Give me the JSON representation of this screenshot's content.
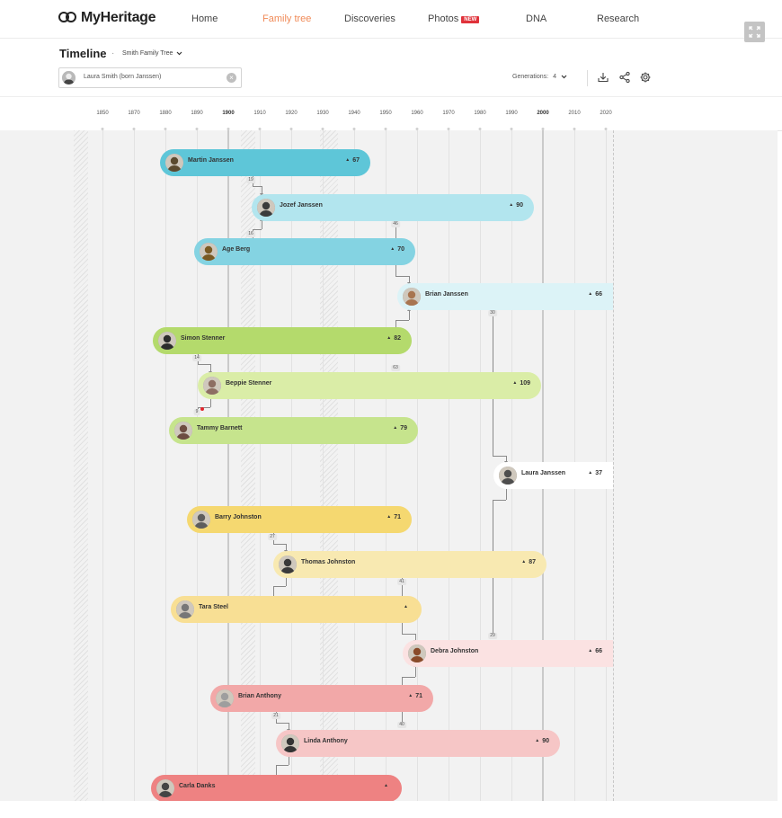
{
  "nav": {
    "logo_text": "MyHeritage",
    "items": [
      {
        "label": "Home",
        "active": false,
        "badge": ""
      },
      {
        "label": "Family tree",
        "active": true,
        "badge": ""
      },
      {
        "label": "Discoveries",
        "active": false,
        "badge": ""
      },
      {
        "label": "Photos",
        "active": false,
        "badge": "NEW"
      },
      {
        "label": "DNA",
        "active": false,
        "badge": ""
      },
      {
        "label": "Research",
        "active": false,
        "badge": ""
      }
    ]
  },
  "header": {
    "title": "Timeline",
    "tree_name": "Smith Family Tree",
    "search_value": "Laura Smith (born Janssen)",
    "generations_label": "Generations:",
    "generations_value": "4"
  },
  "icons": [
    "expand-icon",
    "chevron-down-icon",
    "clear-icon",
    "download-icon",
    "share-icon",
    "settings-icon",
    "person-icon"
  ],
  "colors": {
    "accent": "#f08a57",
    "badge": "#e0323a"
  },
  "timeline": {
    "years": [
      "1850",
      "1870",
      "1880",
      "1890",
      "1900",
      "1910",
      "1920",
      "1930",
      "1940",
      "1950",
      "1960",
      "1970",
      "1980",
      "1990",
      "2000",
      "2010",
      "2020"
    ],
    "people": [
      {
        "name": "Martin Janssen",
        "age": "67",
        "color": "#5ec6d8"
      },
      {
        "name": "Jozef Janssen",
        "age": "90",
        "color": "#b2e5ee"
      },
      {
        "name": "Age Berg",
        "age": "70",
        "color": "#84d3e2"
      },
      {
        "name": "Brian Janssen",
        "age": "66",
        "color": "#dcf3f7"
      },
      {
        "name": "Simon Stenner",
        "age": "82",
        "color": "#b4da6c"
      },
      {
        "name": "Beppie Stenner",
        "age": "109",
        "color": "#daeda7"
      },
      {
        "name": "Tammy Barnett",
        "age": "79",
        "color": "#c6e48d"
      },
      {
        "name": "Laura Janssen",
        "age": "37",
        "color": "#ffffff"
      },
      {
        "name": "Barry Johnston",
        "age": "71",
        "color": "#f5d870"
      },
      {
        "name": "Thomas Johnston",
        "age": "87",
        "color": "#f8e9b1"
      },
      {
        "name": "Tara Steel",
        "age": "",
        "color": "#f8df94"
      },
      {
        "name": "Debra Johnston",
        "age": "66",
        "color": "#fbe2e2"
      },
      {
        "name": "Brian Anthony",
        "age": "71",
        "color": "#f2a8a8"
      },
      {
        "name": "Linda Anthony",
        "age": "90",
        "color": "#f6c6c6"
      },
      {
        "name": "Carla Danks",
        "age": "",
        "color": "#ee8282"
      }
    ],
    "gaps": [
      "19",
      "16",
      "46",
      "30",
      "14",
      "63",
      "9",
      "27",
      "41",
      "29",
      "21",
      "40"
    ]
  }
}
